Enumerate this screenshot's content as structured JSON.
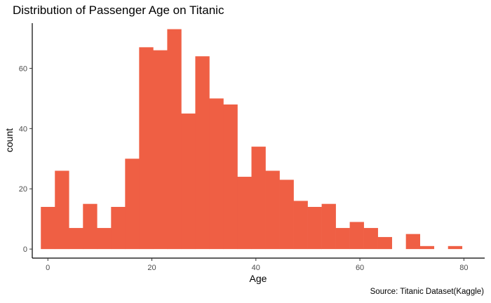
{
  "chart_data": {
    "type": "bar",
    "subtype": "histogram",
    "title": "Distribution of Passenger Age on Titanic",
    "xlabel": "Age",
    "ylabel": "count",
    "caption": "Source: Titanic Dataset(Kaggle)",
    "xlim": [
      -3,
      84
    ],
    "ylim": [
      -3,
      75
    ],
    "bin_width": 2.7,
    "bins": [
      {
        "x0": -1.35,
        "x1": 1.35,
        "count": 14
      },
      {
        "x0": 1.35,
        "x1": 4.05,
        "count": 26
      },
      {
        "x0": 4.05,
        "x1": 6.75,
        "count": 7
      },
      {
        "x0": 6.75,
        "x1": 9.45,
        "count": 15
      },
      {
        "x0": 9.45,
        "x1": 12.15,
        "count": 7
      },
      {
        "x0": 12.15,
        "x1": 14.85,
        "count": 14
      },
      {
        "x0": 14.85,
        "x1": 17.55,
        "count": 30
      },
      {
        "x0": 17.55,
        "x1": 20.25,
        "count": 67
      },
      {
        "x0": 20.25,
        "x1": 22.95,
        "count": 66
      },
      {
        "x0": 22.95,
        "x1": 25.65,
        "count": 73
      },
      {
        "x0": 25.65,
        "x1": 28.35,
        "count": 45
      },
      {
        "x0": 28.35,
        "x1": 31.05,
        "count": 64
      },
      {
        "x0": 31.05,
        "x1": 33.75,
        "count": 50
      },
      {
        "x0": 33.75,
        "x1": 36.45,
        "count": 48
      },
      {
        "x0": 36.45,
        "x1": 39.15,
        "count": 24
      },
      {
        "x0": 39.15,
        "x1": 41.85,
        "count": 34
      },
      {
        "x0": 41.85,
        "x1": 44.55,
        "count": 26
      },
      {
        "x0": 44.55,
        "x1": 47.25,
        "count": 23
      },
      {
        "x0": 47.25,
        "x1": 49.95,
        "count": 16
      },
      {
        "x0": 49.95,
        "x1": 52.65,
        "count": 14
      },
      {
        "x0": 52.65,
        "x1": 55.35,
        "count": 15
      },
      {
        "x0": 55.35,
        "x1": 58.05,
        "count": 7
      },
      {
        "x0": 58.05,
        "x1": 60.75,
        "count": 9
      },
      {
        "x0": 60.75,
        "x1": 63.45,
        "count": 7
      },
      {
        "x0": 63.45,
        "x1": 66.15,
        "count": 4
      },
      {
        "x0": 66.15,
        "x1": 68.85,
        "count": 0
      },
      {
        "x0": 68.85,
        "x1": 71.55,
        "count": 5
      },
      {
        "x0": 71.55,
        "x1": 74.25,
        "count": 1
      },
      {
        "x0": 74.25,
        "x1": 76.95,
        "count": 0
      },
      {
        "x0": 76.95,
        "x1": 79.65,
        "count": 1
      }
    ],
    "xticks": [
      0,
      20,
      40,
      60,
      80
    ],
    "yticks": [
      0,
      20,
      40,
      60
    ],
    "bar_color": "#EF5F44",
    "grid": false,
    "legend": "none"
  }
}
